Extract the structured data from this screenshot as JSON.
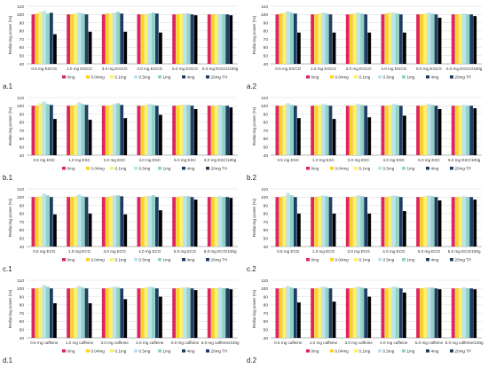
{
  "figure": {
    "colors": [
      "#e0245e",
      "#ffd21f",
      "#fff06a",
      "#b8e6ee",
      "#8fd3c8",
      "#1f3d63"
    ],
    "legend_entries": {
      "ti": [
        "0mg",
        "0.04mg",
        "0.1mg",
        "0.5mg",
        "1mg",
        "4mg",
        "20mg TH"
      ],
      "tp": [
        "0mg",
        "0.04mg",
        "0.1mg",
        "0.5mg",
        "1mg",
        "4mg",
        "20mg TP"
      ]
    }
  },
  "chart_data": [
    {
      "id": "a1",
      "type": "bar",
      "panel_label": "a.1",
      "ylabel": "Reducing power (%)",
      "ylim": [
        40,
        110
      ],
      "yticks": [
        40,
        50,
        60,
        70,
        80,
        90,
        100,
        110
      ],
      "categories": [
        "0.5 mg EGCG",
        "1.0 mg EGCG",
        "3.0 mg EGCG",
        "4.0 mg EGCG",
        "5.0 mg EGCG",
        "6.0 mg EGCG/100g"
      ],
      "series": [
        {
          "name": "0mg",
          "values": [
            100,
            100,
            100,
            100,
            100,
            100
          ]
        },
        {
          "name": "0.04mg",
          "values": [
            101,
            100,
            101,
            100,
            100,
            100
          ]
        },
        {
          "name": "0.1mg",
          "values": [
            103,
            101,
            101,
            100,
            101,
            100
          ]
        },
        {
          "name": "0.5mg",
          "values": [
            104,
            102,
            102,
            101,
            101,
            100
          ]
        },
        {
          "name": "1mg",
          "values": [
            101,
            101,
            103,
            102,
            101,
            100
          ]
        },
        {
          "name": "4mg",
          "values": [
            102,
            100,
            101,
            101,
            100,
            100
          ]
        },
        {
          "name": "20mg TH",
          "values": [
            76,
            79,
            79,
            78,
            99,
            99
          ]
        }
      ],
      "legend": "ti"
    },
    {
      "id": "a2",
      "type": "bar",
      "panel_label": "a.2",
      "ylabel": "Reducing power (%)",
      "ylim": [
        40,
        110
      ],
      "yticks": [
        40,
        50,
        60,
        70,
        80,
        90,
        100,
        110
      ],
      "categories": [
        "0.5 mg EGCG",
        "1.0 mg EGCG",
        "3.0 mg EGCG",
        "4.0 mg EGCG",
        "5.0 mg EGCG",
        "6.0 mg EGCG/100g"
      ],
      "series": [
        {
          "name": "0mg",
          "values": [
            100,
            100,
            100,
            100,
            100,
            100
          ]
        },
        {
          "name": "0.04mg",
          "values": [
            101,
            100,
            100,
            101,
            100,
            100
          ]
        },
        {
          "name": "0.1mg",
          "values": [
            102,
            101,
            101,
            102,
            101,
            100
          ]
        },
        {
          "name": "0.5mg",
          "values": [
            104,
            102,
            102,
            102,
            102,
            101
          ]
        },
        {
          "name": "1mg",
          "values": [
            102,
            101,
            101,
            101,
            101,
            100
          ]
        },
        {
          "name": "4mg",
          "values": [
            101,
            100,
            100,
            100,
            100,
            100
          ]
        },
        {
          "name": "20mg TP",
          "values": [
            78,
            78,
            78,
            78,
            96,
            98
          ]
        }
      ],
      "legend": "tp"
    },
    {
      "id": "b1",
      "type": "bar",
      "panel_label": "b.1",
      "ylabel": "Reducing power (%)",
      "ylim": [
        40,
        110
      ],
      "yticks": [
        40,
        50,
        60,
        70,
        80,
        90,
        100,
        110
      ],
      "categories": [
        "0.5 mg ESC",
        "1.0 mg ESC",
        "3.0 mg ESC",
        "4.0 mg ESC",
        "5.0 mg ESC",
        "6.0 mg ESC/100g"
      ],
      "series": [
        {
          "name": "0mg",
          "values": [
            100,
            100,
            100,
            100,
            100,
            100
          ]
        },
        {
          "name": "0.04mg",
          "values": [
            100,
            100,
            100,
            100,
            100,
            100
          ]
        },
        {
          "name": "0.1mg",
          "values": [
            103,
            101,
            101,
            101,
            101,
            100
          ]
        },
        {
          "name": "0.5mg",
          "values": [
            105,
            104,
            102,
            102,
            101,
            101
          ]
        },
        {
          "name": "1mg",
          "values": [
            102,
            102,
            103,
            101,
            101,
            100
          ]
        },
        {
          "name": "4mg",
          "values": [
            101,
            101,
            101,
            100,
            100,
            100
          ]
        },
        {
          "name": "20mg TH",
          "values": [
            84,
            83,
            85,
            89,
            96,
            98
          ]
        }
      ],
      "legend": "ti"
    },
    {
      "id": "b2",
      "type": "bar",
      "panel_label": "b.2",
      "ylabel": "Reducing power (%)",
      "ylim": [
        40,
        110
      ],
      "yticks": [
        40,
        50,
        60,
        70,
        80,
        90,
        100,
        110
      ],
      "categories": [
        "0.5 mg ESC",
        "1.0 mg ESC",
        "3.0 mg ESC",
        "4.0 mg ESC",
        "5.0 mg ESC",
        "6.0 mg ESC/100g"
      ],
      "series": [
        {
          "name": "0mg",
          "values": [
            100,
            100,
            100,
            100,
            100,
            100
          ]
        },
        {
          "name": "0.04mg",
          "values": [
            100,
            100,
            100,
            100,
            100,
            100
          ]
        },
        {
          "name": "0.1mg",
          "values": [
            101,
            101,
            101,
            101,
            101,
            100
          ]
        },
        {
          "name": "0.5mg",
          "values": [
            103,
            102,
            102,
            102,
            102,
            101
          ]
        },
        {
          "name": "1mg",
          "values": [
            101,
            101,
            101,
            101,
            101,
            100
          ]
        },
        {
          "name": "4mg",
          "values": [
            100,
            100,
            100,
            100,
            100,
            100
          ]
        },
        {
          "name": "20mg TP",
          "values": [
            85,
            84,
            86,
            88,
            96,
            97
          ]
        }
      ],
      "legend": "tp"
    },
    {
      "id": "c1",
      "type": "bar",
      "panel_label": "c.1",
      "ylabel": "Reducing power (%)",
      "ylim": [
        40,
        110
      ],
      "yticks": [
        40,
        50,
        60,
        70,
        80,
        90,
        100,
        110
      ],
      "categories": [
        "0.5 mg ECG",
        "1.0 mg ECG",
        "3.0 mg ECG",
        "4.0 mg ECG",
        "5.0 mg ECG",
        "6.0 mg ECG/100g"
      ],
      "series": [
        {
          "name": "0mg",
          "values": [
            100,
            100,
            100,
            100,
            100,
            100
          ]
        },
        {
          "name": "0.04mg",
          "values": [
            100,
            100,
            100,
            100,
            100,
            100
          ]
        },
        {
          "name": "0.1mg",
          "values": [
            101,
            101,
            101,
            101,
            101,
            100
          ]
        },
        {
          "name": "0.5mg",
          "values": [
            104,
            103,
            102,
            101,
            101,
            101
          ]
        },
        {
          "name": "1mg",
          "values": [
            102,
            101,
            102,
            102,
            101,
            100
          ]
        },
        {
          "name": "4mg",
          "values": [
            100,
            100,
            101,
            100,
            100,
            100
          ]
        },
        {
          "name": "20mg TH",
          "values": [
            79,
            80,
            79,
            84,
            97,
            99
          ]
        }
      ],
      "legend": "ti"
    },
    {
      "id": "c2",
      "type": "bar",
      "panel_label": "c.2",
      "ylabel": "Reducing power (%)",
      "ylim": [
        40,
        110
      ],
      "yticks": [
        40,
        50,
        60,
        70,
        80,
        90,
        100,
        110
      ],
      "categories": [
        "0.5 mg ECG",
        "1.0 mg ECG",
        "3.0 mg ECG",
        "4.0 mg ECG",
        "5.0 mg ECG",
        "6.0 mg ECG/100g"
      ],
      "series": [
        {
          "name": "0mg",
          "values": [
            100,
            100,
            100,
            100,
            100,
            100
          ]
        },
        {
          "name": "0.04mg",
          "values": [
            100,
            100,
            100,
            100,
            100,
            100
          ]
        },
        {
          "name": "0.1mg",
          "values": [
            101,
            101,
            101,
            101,
            101,
            100
          ]
        },
        {
          "name": "0.5mg",
          "values": [
            105,
            102,
            102,
            102,
            102,
            101
          ]
        },
        {
          "name": "1mg",
          "values": [
            102,
            101,
            101,
            101,
            101,
            100
          ]
        },
        {
          "name": "4mg",
          "values": [
            100,
            100,
            100,
            100,
            100,
            100
          ]
        },
        {
          "name": "20mg TP",
          "values": [
            80,
            80,
            80,
            83,
            96,
            97
          ]
        }
      ],
      "legend": "tp"
    },
    {
      "id": "d1",
      "type": "bar",
      "panel_label": "d.1",
      "ylabel": "Reducing power (%)",
      "ylim": [
        40,
        110
      ],
      "yticks": [
        40,
        50,
        60,
        70,
        80,
        90,
        100,
        110
      ],
      "categories": [
        "0.5 mg caffeine",
        "1.0 mg caffeine",
        "3.0 mg caffeine",
        "4.0 mg caffeine",
        "5.0 mg caffeine",
        "6.0 mg caffeine/100g"
      ],
      "series": [
        {
          "name": "0mg",
          "values": [
            100,
            100,
            100,
            100,
            100,
            100
          ]
        },
        {
          "name": "0.04mg",
          "values": [
            100,
            100,
            100,
            100,
            100,
            100
          ]
        },
        {
          "name": "0.1mg",
          "values": [
            101,
            101,
            101,
            101,
            101,
            100
          ]
        },
        {
          "name": "0.5mg",
          "values": [
            104,
            103,
            102,
            102,
            101,
            101
          ]
        },
        {
          "name": "1mg",
          "values": [
            102,
            101,
            101,
            101,
            101,
            100
          ]
        },
        {
          "name": "4mg",
          "values": [
            100,
            100,
            100,
            100,
            100,
            100
          ]
        },
        {
          "name": "20mg TH",
          "values": [
            82,
            82,
            87,
            90,
            98,
            99
          ]
        }
      ],
      "legend": "ti"
    },
    {
      "id": "d2",
      "type": "bar",
      "panel_label": "d.2",
      "ylabel": "Reducing power (%)",
      "ylim": [
        40,
        110
      ],
      "yticks": [
        40,
        50,
        60,
        70,
        80,
        90,
        100,
        110
      ],
      "categories": [
        "0.5 mg caffeine",
        "1.0 mg caffeine",
        "3.0 mg caffeine",
        "4.0 mg caffeine",
        "5.0 mg caffeine",
        "6.0 mg caffeine/100g"
      ],
      "series": [
        {
          "name": "0mg",
          "values": [
            100,
            100,
            100,
            100,
            100,
            100
          ]
        },
        {
          "name": "0.04mg",
          "values": [
            100,
            100,
            100,
            100,
            100,
            100
          ]
        },
        {
          "name": "0.1mg",
          "values": [
            101,
            101,
            101,
            101,
            101,
            100
          ]
        },
        {
          "name": "0.5mg",
          "values": [
            103,
            102,
            102,
            102,
            101,
            101
          ]
        },
        {
          "name": "1mg",
          "values": [
            101,
            101,
            101,
            101,
            101,
            100
          ]
        },
        {
          "name": "4mg",
          "values": [
            100,
            100,
            100,
            100,
            100,
            100
          ]
        },
        {
          "name": "20mg TP",
          "values": [
            83,
            84,
            90,
            95,
            99,
            99
          ]
        }
      ],
      "legend": "tp"
    }
  ]
}
